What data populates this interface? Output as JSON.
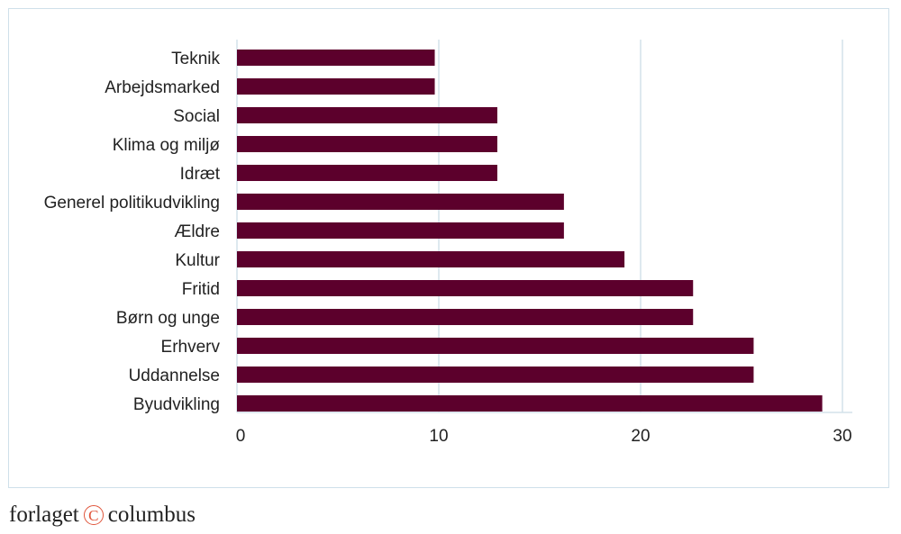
{
  "chart_data": {
    "type": "bar",
    "orientation": "horizontal",
    "categories": [
      "Teknik",
      "Arbejdsmarked",
      "Social",
      "Klima og miljø",
      "Idræt",
      "Generel politikudvikling",
      "Ældre",
      "Kultur",
      "Fritid",
      "Børn og unge",
      "Erhverv",
      "Uddannelse",
      "Byudvikling"
    ],
    "values": [
      9.8,
      9.8,
      12.9,
      12.9,
      12.9,
      16.2,
      16.2,
      19.2,
      22.6,
      22.6,
      25.6,
      25.6,
      29.0
    ],
    "xlim": [
      0,
      30
    ],
    "xticks": [
      "0",
      "10",
      "20",
      "30"
    ],
    "title": "",
    "xlabel": "",
    "ylabel": "",
    "grid": "vertical",
    "bar_color": "#5c002c",
    "grid_color": "#d3e2ea"
  },
  "footer": {
    "logo_left": "forlaget",
    "logo_mark": "C",
    "logo_right": "columbus",
    "logo_color": "#e0553b"
  }
}
